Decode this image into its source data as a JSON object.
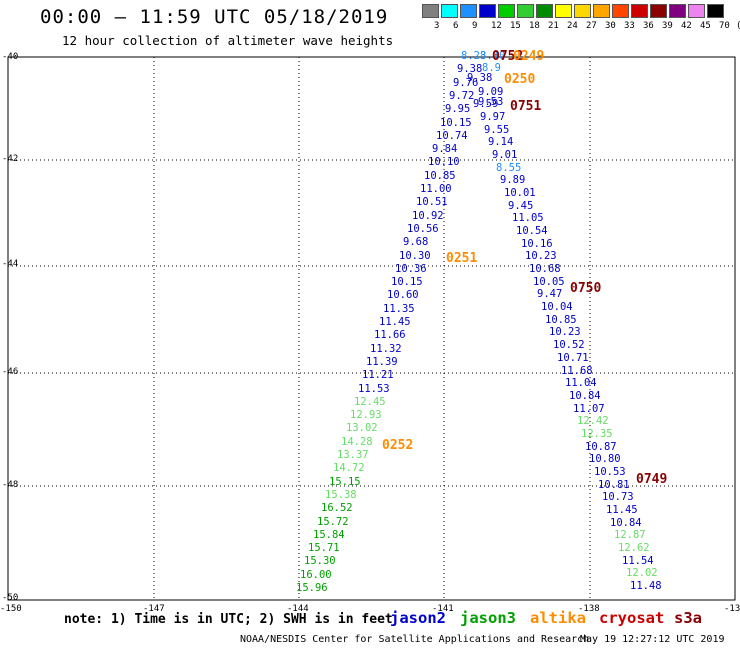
{
  "title": "00:00 – 11:59 UTC 05/18/2019",
  "subtitle": "12 hour collection of altimeter wave heights",
  "colorbar": {
    "colors": [
      "#808080",
      "#00ffff",
      "#1e90ff",
      "#0000cd",
      "#00cd00",
      "#32cd32",
      "#008b00",
      "#ffff00",
      "#ffd700",
      "#ffa500",
      "#ff4500",
      "#cd0000",
      "#8b0000",
      "#800080",
      "#ee82ee",
      "#000000"
    ],
    "labels": [
      "3",
      "6",
      "9",
      "12",
      "15",
      "18",
      "21",
      "24",
      "27",
      "30",
      "33",
      "36",
      "39",
      "42",
      "45",
      "70",
      "(ft)"
    ]
  },
  "lat_labels": [
    "-40",
    "-42",
    "-44",
    "-46",
    "-48",
    "-50"
  ],
  "lon_labels": [
    "-150",
    "-147",
    "-144",
    "-141",
    "-138",
    "-13"
  ],
  "note": "note: 1) Time is in UTC; 2) SWH is in feet",
  "legend": [
    {
      "name": "jason2",
      "color": "#0000cd"
    },
    {
      "name": "jason3",
      "color": "#00a000"
    },
    {
      "name": "altika",
      "color": "#ff8c00"
    },
    {
      "name": "cryosat",
      "color": "#cc0000"
    },
    {
      "name": "s3a",
      "color": "#8b0000"
    }
  ],
  "footer_left": "NOAA/NESDIS Center for Satellite Applications and Research",
  "footer_right": "May 19 12:27:12 UTC 2019",
  "time_labels": [
    {
      "text": "0752",
      "color": "#8b0000"
    },
    {
      "text": "0249",
      "color": "#ff8c00"
    },
    {
      "text": "0250",
      "color": "#ff8c00"
    },
    {
      "text": "0751",
      "color": "#8b0000"
    },
    {
      "text": "0251",
      "color": "#ff8c00"
    },
    {
      "text": "0750",
      "color": "#8b0000"
    },
    {
      "text": "0252",
      "color": "#ff8c00"
    },
    {
      "text": "0749",
      "color": "#8b0000"
    }
  ],
  "track_left": [
    {
      "v": "8.23",
      "c": "#1e90ff"
    },
    {
      "v": "9.38",
      "c": "#0000cd"
    },
    {
      "v": "9.76",
      "c": "#0000cd"
    },
    {
      "v": "9.72",
      "c": "#0000cd"
    },
    {
      "v": "9.95",
      "c": "#0000cd"
    },
    {
      "v": "10.15",
      "c": "#0000cd"
    },
    {
      "v": "10.74",
      "c": "#0000cd"
    },
    {
      "v": "9.84",
      "c": "#0000cd"
    },
    {
      "v": "10.10",
      "c": "#0000cd"
    },
    {
      "v": "10.85",
      "c": "#0000cd"
    },
    {
      "v": "11.00",
      "c": "#0000cd"
    },
    {
      "v": "10.51",
      "c": "#0000cd"
    },
    {
      "v": "10.92",
      "c": "#0000cd"
    },
    {
      "v": "10.56",
      "c": "#0000cd"
    },
    {
      "v": "9.68",
      "c": "#0000cd"
    },
    {
      "v": "10.30",
      "c": "#0000cd"
    },
    {
      "v": "10.36",
      "c": "#0000cd"
    },
    {
      "v": "10.15",
      "c": "#0000cd"
    },
    {
      "v": "10.60",
      "c": "#0000cd"
    },
    {
      "v": "11.35",
      "c": "#0000cd"
    },
    {
      "v": "11.45",
      "c": "#0000cd"
    },
    {
      "v": "11.66",
      "c": "#0000cd"
    },
    {
      "v": "11.32",
      "c": "#0000cd"
    },
    {
      "v": "11.39",
      "c": "#0000cd"
    },
    {
      "v": "11.21",
      "c": "#0000cd"
    },
    {
      "v": "11.53",
      "c": "#0000cd"
    },
    {
      "v": "12.45",
      "c": "#66dd66"
    },
    {
      "v": "12.93",
      "c": "#66dd66"
    },
    {
      "v": "13.02",
      "c": "#66dd66"
    },
    {
      "v": "14.28",
      "c": "#66dd66"
    },
    {
      "v": "13.37",
      "c": "#66dd66"
    },
    {
      "v": "14.72",
      "c": "#66dd66"
    },
    {
      "v": "15.15",
      "c": "#00a000"
    },
    {
      "v": "15.38",
      "c": "#66dd66"
    },
    {
      "v": "16.52",
      "c": "#00a000"
    },
    {
      "v": "15.72",
      "c": "#00a000"
    },
    {
      "v": "15.84",
      "c": "#00a000"
    },
    {
      "v": "15.71",
      "c": "#00a000"
    },
    {
      "v": "15.30",
      "c": "#00a000"
    },
    {
      "v": "16.00",
      "c": "#00a000"
    },
    {
      "v": "15.96",
      "c": "#00a000"
    }
  ],
  "track_top": [
    {
      "v": "8.10",
      "c": "#1e90ff"
    },
    {
      "v": "8.9",
      "c": "#1e90ff"
    },
    {
      "v": "9.38",
      "c": "#0000cd"
    },
    {
      "v": "9.09",
      "c": "#0000cd"
    },
    {
      "v": "9.59",
      "c": "#0000cd"
    },
    {
      "v": "9.53",
      "c": "#0000cd"
    }
  ],
  "track_right": [
    {
      "v": "9.97",
      "c": "#0000cd"
    },
    {
      "v": "9.55",
      "c": "#0000cd"
    },
    {
      "v": "9.14",
      "c": "#0000cd"
    },
    {
      "v": "9.01",
      "c": "#0000cd"
    },
    {
      "v": "8.55",
      "c": "#1e90ff"
    },
    {
      "v": "9.89",
      "c": "#0000cd"
    },
    {
      "v": "10.01",
      "c": "#0000cd"
    },
    {
      "v": "9.45",
      "c": "#0000cd"
    },
    {
      "v": "11.05",
      "c": "#0000cd"
    },
    {
      "v": "10.54",
      "c": "#0000cd"
    },
    {
      "v": "10.16",
      "c": "#0000cd"
    },
    {
      "v": "10.23",
      "c": "#0000cd"
    },
    {
      "v": "10.68",
      "c": "#0000cd"
    },
    {
      "v": "10.05",
      "c": "#0000cd"
    },
    {
      "v": "9.47",
      "c": "#0000cd"
    },
    {
      "v": "10.04",
      "c": "#0000cd"
    },
    {
      "v": "10.85",
      "c": "#0000cd"
    },
    {
      "v": "10.23",
      "c": "#0000cd"
    },
    {
      "v": "10.52",
      "c": "#0000cd"
    },
    {
      "v": "10.71",
      "c": "#0000cd"
    },
    {
      "v": "11.68",
      "c": "#0000cd"
    },
    {
      "v": "11.04",
      "c": "#0000cd"
    },
    {
      "v": "10.84",
      "c": "#0000cd"
    },
    {
      "v": "11.07",
      "c": "#0000cd"
    },
    {
      "v": "12.42",
      "c": "#66dd66"
    },
    {
      "v": "12.35",
      "c": "#66dd66"
    },
    {
      "v": "10.87",
      "c": "#0000cd"
    },
    {
      "v": "10.80",
      "c": "#0000cd"
    },
    {
      "v": "10.53",
      "c": "#0000cd"
    },
    {
      "v": "10.81",
      "c": "#0000cd"
    },
    {
      "v": "10.73",
      "c": "#0000cd"
    },
    {
      "v": "11.45",
      "c": "#0000cd"
    },
    {
      "v": "10.84",
      "c": "#0000cd"
    },
    {
      "v": "12.87",
      "c": "#66dd66"
    },
    {
      "v": "12.62",
      "c": "#66dd66"
    },
    {
      "v": "11.54",
      "c": "#0000cd"
    },
    {
      "v": "12.02",
      "c": "#66dd66"
    },
    {
      "v": "11.48",
      "c": "#0000cd"
    }
  ]
}
